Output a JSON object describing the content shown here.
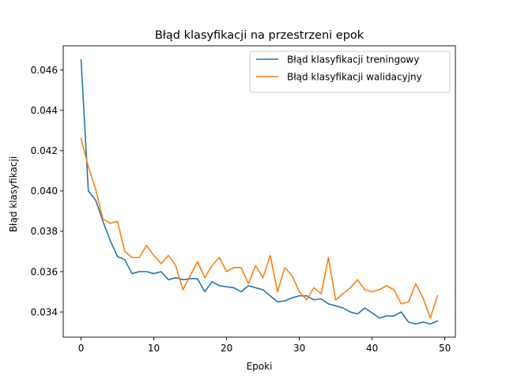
{
  "chart_data": {
    "type": "line",
    "title": "Błąd klasyfikacji na przestrzeni epok",
    "xlabel": "Epoki",
    "ylabel": "Błąd klasyfikacji",
    "xlim": [
      -2.45,
      51.45
    ],
    "ylim": [
      0.03275,
      0.0472
    ],
    "xticks": [
      0,
      10,
      20,
      30,
      40,
      50
    ],
    "xtick_labels": [
      "0",
      "10",
      "20",
      "30",
      "40",
      "50"
    ],
    "yticks": [
      0.034,
      0.036,
      0.038,
      0.04,
      0.042,
      0.044,
      0.046
    ],
    "ytick_labels": [
      "0.034",
      "0.036",
      "0.038",
      "0.040",
      "0.042",
      "0.044",
      "0.046"
    ],
    "grid": false,
    "legend_position": "top-right",
    "x": [
      0,
      1,
      2,
      3,
      4,
      5,
      6,
      7,
      8,
      9,
      10,
      11,
      12,
      13,
      14,
      15,
      16,
      17,
      18,
      19,
      20,
      21,
      22,
      23,
      24,
      25,
      26,
      27,
      28,
      29,
      30,
      31,
      32,
      33,
      34,
      35,
      36,
      37,
      38,
      39,
      40,
      41,
      42,
      43,
      44,
      45,
      46,
      47,
      48,
      49
    ],
    "series": [
      {
        "name": "Błąd klasyfikacji treningowy",
        "color": "#1f77b4",
        "values": [
          0.0465,
          0.04,
          0.03955,
          0.0385,
          0.03755,
          0.03675,
          0.0366,
          0.0359,
          0.036,
          0.036,
          0.0359,
          0.036,
          0.0356,
          0.0357,
          0.0356,
          0.03565,
          0.03565,
          0.035,
          0.0355,
          0.0353,
          0.03525,
          0.0352,
          0.035,
          0.0353,
          0.0352,
          0.0351,
          0.0348,
          0.0345,
          0.03455,
          0.0347,
          0.0348,
          0.0348,
          0.0346,
          0.03465,
          0.0344,
          0.0343,
          0.0342,
          0.034,
          0.0339,
          0.0342,
          0.03395,
          0.0337,
          0.0338,
          0.0338,
          0.034,
          0.0335,
          0.0334,
          0.0335,
          0.0334,
          0.03355
        ]
      },
      {
        "name": "Błąd klasyfikacji walidacyjny",
        "color": "#ff7f0e",
        "values": [
          0.0426,
          0.0412,
          0.0401,
          0.0386,
          0.0384,
          0.0385,
          0.037,
          0.0367,
          0.0367,
          0.0373,
          0.0368,
          0.0364,
          0.0368,
          0.0363,
          0.0351,
          0.0358,
          0.0365,
          0.0357,
          0.0363,
          0.0367,
          0.036,
          0.0362,
          0.0362,
          0.0354,
          0.0363,
          0.0357,
          0.0368,
          0.035,
          0.0362,
          0.0358,
          0.035,
          0.0346,
          0.0352,
          0.0349,
          0.0367,
          0.0346,
          0.0349,
          0.0352,
          0.0356,
          0.0351,
          0.035,
          0.0351,
          0.0353,
          0.0351,
          0.0344,
          0.0345,
          0.0354,
          0.0347,
          0.0337,
          0.0348
        ]
      }
    ]
  }
}
